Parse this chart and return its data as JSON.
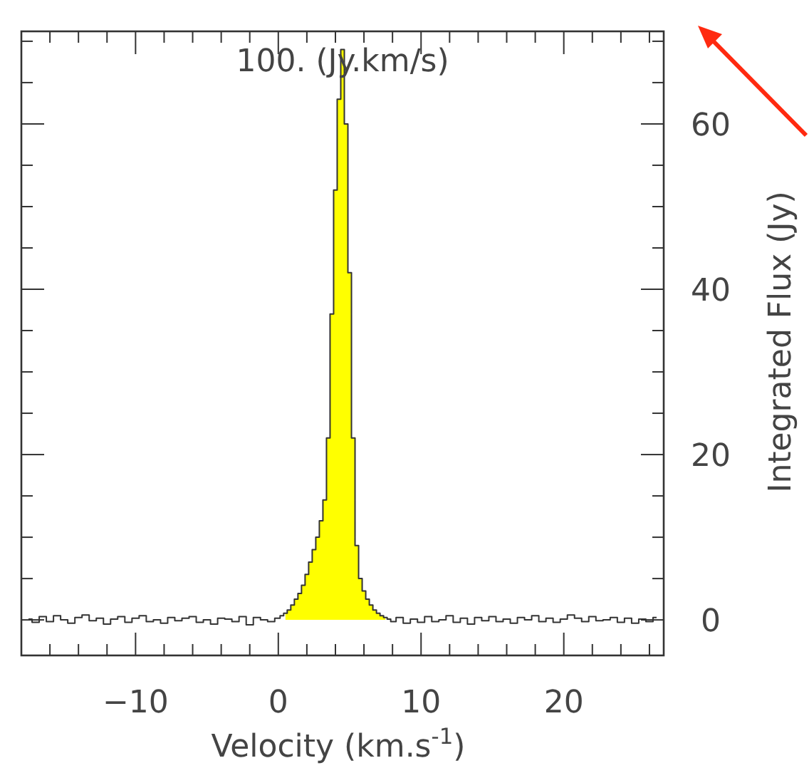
{
  "chart_data": {
    "type": "step",
    "title": "100. (Jy.km/s)",
    "xlabel": "Velocity (km.s$^{-1}$)",
    "ylabel": "Integrated Flux (Jy)",
    "xlim": [
      -18,
      27
    ],
    "ylim": [
      -4.3,
      71.2
    ],
    "xticks": [
      {
        "value": -16,
        "label": null
      },
      {
        "value": -14,
        "label": null
      },
      {
        "value": -12,
        "label": null
      },
      -10,
      {
        "value": -8,
        "label": null
      },
      {
        "value": -6,
        "label": null
      },
      {
        "value": -4,
        "label": null
      },
      {
        "value": -2,
        "label": null
      },
      0,
      {
        "value": 2,
        "label": null
      },
      {
        "value": 4,
        "label": null
      },
      {
        "value": 6,
        "label": null
      },
      {
        "value": 8,
        "label": null
      },
      10,
      {
        "value": 12,
        "label": null
      },
      {
        "value": 14,
        "label": null
      },
      {
        "value": 16,
        "label": null
      },
      {
        "value": 18,
        "label": null
      },
      20,
      {
        "value": 22,
        "label": null
      },
      {
        "value": 24,
        "label": null
      },
      {
        "value": 26,
        "label": null
      }
    ],
    "yticks": [
      0,
      {
        "value": 5,
        "label": null
      },
      {
        "value": 10,
        "label": null
      },
      {
        "value": 15,
        "label": null
      },
      20,
      {
        "value": 25,
        "label": null
      },
      {
        "value": 30,
        "label": null
      },
      {
        "value": 35,
        "label": null
      },
      40,
      {
        "value": 45,
        "label": null
      },
      {
        "value": 50,
        "label": null
      },
      {
        "value": 55,
        "label": null
      },
      60,
      {
        "value": 65,
        "label": null
      },
      {
        "value": 70,
        "label": null
      }
    ],
    "series": [
      {
        "type": "area",
        "color": "#ffff00",
        "x": [
          0.5,
          0.75,
          1.0,
          1.25,
          1.5,
          1.75,
          2.0,
          2.25,
          2.5,
          2.75,
          3.0,
          3.25,
          3.5,
          3.75,
          4.0,
          4.25,
          4.5,
          4.75,
          5.0,
          5.25,
          5.5,
          5.75,
          6.0,
          6.25,
          6.5,
          6.75,
          7.0,
          7.25,
          7.5
        ],
        "values": [
          0.8,
          1.2,
          1.8,
          2.5,
          3.2,
          4.2,
          5.5,
          7.0,
          8.5,
          10,
          12,
          14.5,
          22,
          37,
          52,
          63,
          69,
          60,
          42,
          22,
          9,
          5,
          3.5,
          2.5,
          1.8,
          1.2,
          0.8,
          0.5,
          0.3
        ]
      },
      {
        "color": "#333333",
        "x": [
          -17.5,
          -17,
          -16.5,
          -16,
          -15.5,
          -15,
          -14.5,
          -14,
          -13.5,
          -13,
          -12.5,
          -12,
          -11.5,
          -11,
          -10.5,
          -10,
          -9.5,
          -9,
          -8.5,
          -8,
          -7.5,
          -7,
          -6.5,
          -6,
          -5.5,
          -5,
          -4.5,
          -4,
          -3.5,
          -3,
          -2.5,
          -2,
          -1.5,
          -1,
          -0.5,
          0,
          0.25,
          0.5,
          0.75,
          1.0,
          1.25,
          1.5,
          1.75,
          2.0,
          2.25,
          2.5,
          2.75,
          3.0,
          3.25,
          3.5,
          3.75,
          4.0,
          4.25,
          4.5,
          4.75,
          5.0,
          5.25,
          5.5,
          5.75,
          6.0,
          6.25,
          6.5,
          6.75,
          7.0,
          7.25,
          7.5,
          7.75,
          8.0,
          8.5,
          9,
          9.5,
          10,
          10.5,
          11,
          11.5,
          12,
          12.5,
          13,
          13.5,
          14,
          14.5,
          15,
          15.5,
          16,
          16.5,
          17,
          17.5,
          18,
          18.5,
          19,
          19.5,
          20,
          20.5,
          21,
          21.5,
          22,
          22.5,
          23,
          23.5,
          24,
          24.5,
          25,
          25.5,
          26,
          26.5
        ],
        "values": [
          0.1,
          -0.3,
          0.4,
          -0.2,
          0.5,
          0.0,
          -0.4,
          0.3,
          0.6,
          -0.1,
          0.2,
          -0.5,
          0.1,
          0.4,
          -0.3,
          0.2,
          0.5,
          -0.2,
          0.0,
          -0.4,
          0.3,
          -0.1,
          0.2,
          0.4,
          -0.3,
          0.0,
          -0.5,
          0.2,
          0.1,
          -0.2,
          0.4,
          -0.6,
          0.3,
          0.0,
          -0.2,
          0.2,
          0.5,
          0.8,
          1.2,
          1.8,
          2.5,
          3.2,
          4.2,
          5.5,
          7.0,
          8.5,
          10,
          12,
          14.5,
          22,
          37,
          52,
          63,
          69,
          60,
          42,
          22,
          9,
          5,
          3.5,
          2.5,
          1.8,
          1.2,
          0.8,
          0.5,
          0.3,
          0.1,
          -0.2,
          0.3,
          -0.4,
          0.1,
          -0.3,
          0.4,
          -0.2,
          0.0,
          0.5,
          -0.3,
          0.2,
          -0.5,
          0.3,
          -0.1,
          0.4,
          -0.2,
          0.1,
          -0.4,
          0.3,
          0.0,
          0.5,
          -0.2,
          0.2,
          -0.3,
          0.1,
          0.6,
          0.2,
          -0.2,
          0.4,
          -0.1,
          0.0,
          0.3,
          -0.3,
          0.2,
          -0.4,
          0.1,
          -0.2,
          0.3
        ]
      }
    ]
  }
}
